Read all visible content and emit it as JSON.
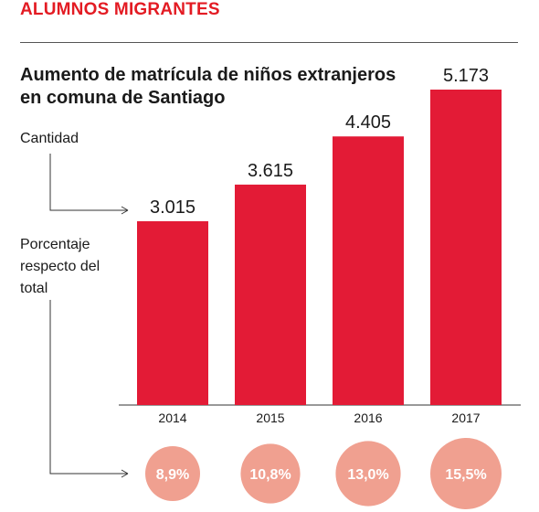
{
  "section_label": "ALUMNOS MIGRANTES",
  "title": "Aumento de matrícula de niños extranjeros en comuna de Santiago",
  "labels": {
    "cantidad": "Cantidad",
    "porcentaje": "Porcentaje respecto del total"
  },
  "colors": {
    "accent": "#e31b23",
    "bar": "#e31b36",
    "circle": "#f0a090",
    "circle_text": "#ffffff",
    "axis": "#333333"
  },
  "chart_data": {
    "type": "bar",
    "title": "Aumento de matrícula de niños extranjeros en comuna de Santiago",
    "categories": [
      "2014",
      "2015",
      "2016",
      "2017"
    ],
    "series": [
      {
        "name": "Cantidad",
        "values": [
          3015,
          3615,
          4405,
          5173
        ],
        "labels": [
          "3.015",
          "3.615",
          "4.405",
          "5.173"
        ]
      },
      {
        "name": "Porcentaje respecto del total",
        "values": [
          8.9,
          10.8,
          13.0,
          15.5
        ],
        "labels": [
          "8,9%",
          "10,8%",
          "13,0%",
          "15,5%"
        ]
      }
    ],
    "ylim": [
      0,
      5173
    ],
    "grid": false
  }
}
